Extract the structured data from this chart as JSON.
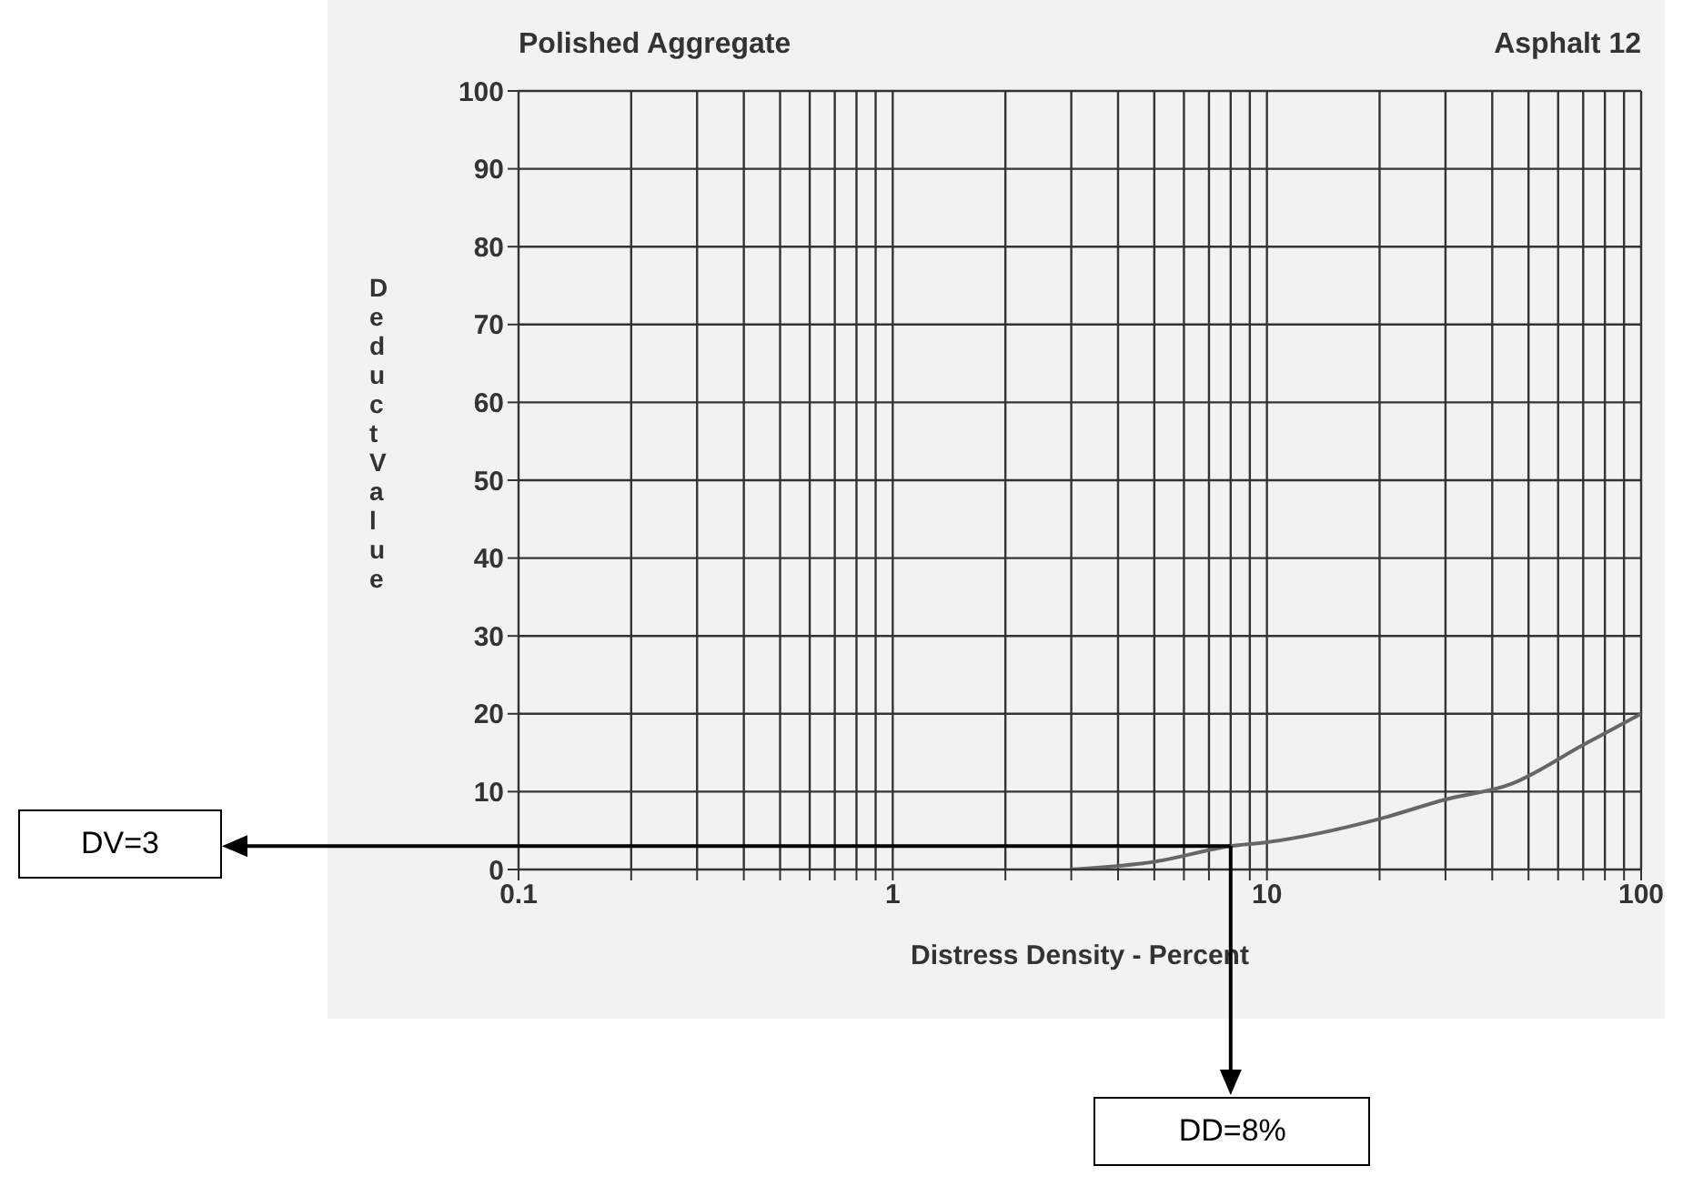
{
  "chart_data": {
    "type": "line",
    "title": "Polished Aggregate",
    "subtitle": "Asphalt 12",
    "xlabel": "Distress Density - Percent",
    "ylabel": "Deduct Value",
    "log": "x",
    "grid": true,
    "marker": "none",
    "line_style": "solid",
    "xlim": [
      0.1,
      100
    ],
    "ylim": [
      0,
      100
    ],
    "xticks": [
      0.1,
      {
        "value": 0.2,
        "label": null
      },
      {
        "value": 0.3,
        "label": null
      },
      {
        "value": 0.4,
        "label": null
      },
      {
        "value": 0.5,
        "label": null
      },
      {
        "value": 0.6,
        "label": null
      },
      {
        "value": 0.7,
        "label": null
      },
      {
        "value": 0.8,
        "label": null
      },
      {
        "value": 0.9,
        "label": null
      },
      1,
      {
        "value": 2,
        "label": null
      },
      {
        "value": 3,
        "label": null
      },
      {
        "value": 4,
        "label": null
      },
      {
        "value": 5,
        "label": null
      },
      {
        "value": 6,
        "label": null
      },
      {
        "value": 7,
        "label": null
      },
      {
        "value": 8,
        "label": null
      },
      {
        "value": 9,
        "label": null
      },
      10,
      {
        "value": 20,
        "label": null
      },
      {
        "value": 30,
        "label": null
      },
      {
        "value": 40,
        "label": null
      },
      {
        "value": 50,
        "label": null
      },
      {
        "value": 60,
        "label": null
      },
      {
        "value": 70,
        "label": null
      },
      {
        "value": 80,
        "label": null
      },
      {
        "value": 90,
        "label": null
      },
      100
    ],
    "yticks": [
      0,
      10,
      20,
      30,
      40,
      50,
      60,
      70,
      80,
      90,
      100
    ],
    "x": [
      3,
      5,
      8,
      10,
      20,
      30,
      45,
      70,
      100
    ],
    "series": [
      {
        "color": "#666666",
        "values": [
          0,
          1,
          3,
          3.5,
          6.5,
          9,
          11,
          16,
          20
        ]
      }
    ],
    "ref_lines": [
      {
        "axis": "y",
        "value": 3,
        "label": "DV=3",
        "color": "#000000"
      },
      {
        "axis": "x",
        "value": 8,
        "label": "DD=8%",
        "color": "#000000"
      }
    ]
  }
}
